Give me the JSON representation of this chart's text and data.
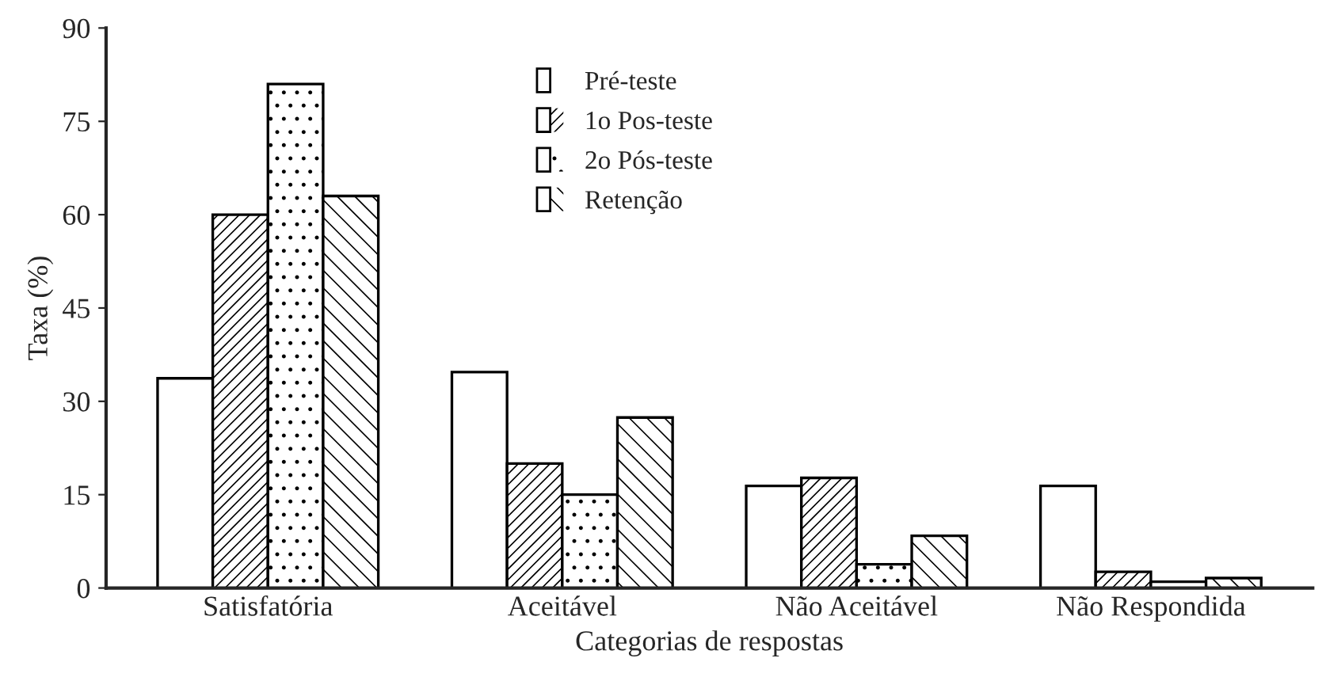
{
  "chart_data": {
    "type": "bar",
    "xlabel": "Categorias de respostas",
    "ylabel": "Taxa (%)",
    "categories": [
      "Satisfatória",
      "Aceitável",
      "Não Aceitável",
      "Não Respondida"
    ],
    "series": [
      {
        "name": "Pré-teste",
        "color": "#ffffff",
        "values": [
          33.7,
          34.7,
          16.4,
          16.4
        ]
      },
      {
        "name": "1o Pos-teste",
        "color": "#ffffff",
        "values": [
          60,
          20,
          17.7,
          2.6
        ]
      },
      {
        "name": "2o Pós-teste",
        "color": "#ffffff",
        "values": [
          81,
          15,
          3.8,
          1.0
        ]
      },
      {
        "name": "Retenção",
        "color": "#ffffff",
        "values": [
          63,
          27.4,
          8.4,
          1.6
        ]
      }
    ],
    "ylim": [
      0,
      90
    ],
    "yticks": [
      0,
      15,
      30,
      45,
      60,
      75,
      90
    ],
    "grid": false,
    "legend": "top"
  }
}
